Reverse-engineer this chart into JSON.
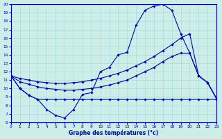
{
  "xlabel": "Graphe des températures (°c)",
  "xlim": [
    0,
    23
  ],
  "ylim": [
    6,
    20
  ],
  "xticks": [
    0,
    1,
    2,
    3,
    4,
    5,
    6,
    7,
    8,
    9,
    10,
    11,
    12,
    13,
    14,
    15,
    16,
    17,
    18,
    19,
    20,
    21,
    22,
    23
  ],
  "yticks": [
    6,
    7,
    8,
    9,
    10,
    11,
    12,
    13,
    14,
    15,
    16,
    17,
    18,
    19,
    20
  ],
  "bg_color": "#cceee8",
  "line_color": "#0000bb",
  "grid_color": "#aadddd",
  "curve_bell": [
    [
      0,
      11.5
    ],
    [
      1,
      10.0
    ],
    [
      2,
      9.2
    ],
    [
      3,
      8.7
    ],
    [
      4,
      7.5
    ],
    [
      5,
      6.8
    ],
    [
      6,
      6.5
    ],
    [
      7,
      7.5
    ],
    [
      8,
      9.3
    ],
    [
      9,
      9.5
    ],
    [
      10,
      12.0
    ],
    [
      11,
      12.5
    ],
    [
      12,
      14.0
    ],
    [
      13,
      14.3
    ],
    [
      14,
      17.5
    ],
    [
      15,
      19.3
    ],
    [
      16,
      19.8
    ],
    [
      17,
      20.0
    ],
    [
      18,
      19.3
    ],
    [
      19,
      16.5
    ],
    [
      20,
      14.2
    ],
    [
      21,
      11.5
    ],
    [
      22,
      10.7
    ],
    [
      23,
      8.8
    ]
  ],
  "curve_min": [
    [
      0,
      11.5
    ],
    [
      1,
      10.0
    ],
    [
      2,
      9.2
    ],
    [
      3,
      8.7
    ],
    [
      4,
      8.7
    ],
    [
      5,
      8.7
    ],
    [
      6,
      8.7
    ],
    [
      7,
      8.7
    ],
    [
      8,
      8.7
    ],
    [
      9,
      8.7
    ],
    [
      10,
      8.7
    ],
    [
      11,
      8.7
    ],
    [
      12,
      8.7
    ],
    [
      13,
      8.7
    ],
    [
      14,
      8.7
    ],
    [
      15,
      8.7
    ],
    [
      16,
      8.7
    ],
    [
      17,
      8.7
    ],
    [
      18,
      8.7
    ],
    [
      19,
      8.7
    ],
    [
      20,
      8.7
    ],
    [
      21,
      8.7
    ],
    [
      22,
      8.7
    ],
    [
      23,
      8.7
    ]
  ],
  "curve_upper_diag": [
    [
      0,
      11.5
    ],
    [
      1,
      11.2
    ],
    [
      2,
      11.0
    ],
    [
      3,
      10.8
    ],
    [
      4,
      10.7
    ],
    [
      5,
      10.6
    ],
    [
      6,
      10.6
    ],
    [
      7,
      10.7
    ],
    [
      8,
      10.8
    ],
    [
      9,
      11.0
    ],
    [
      10,
      11.2
    ],
    [
      11,
      11.5
    ],
    [
      12,
      11.8
    ],
    [
      13,
      12.2
    ],
    [
      14,
      12.7
    ],
    [
      15,
      13.2
    ],
    [
      16,
      13.8
    ],
    [
      17,
      14.5
    ],
    [
      18,
      15.2
    ],
    [
      19,
      16.0
    ],
    [
      20,
      16.5
    ],
    [
      21,
      11.5
    ],
    [
      22,
      10.7
    ],
    [
      23,
      8.8
    ]
  ],
  "curve_lower_diag": [
    [
      0,
      11.5
    ],
    [
      1,
      10.8
    ],
    [
      2,
      10.5
    ],
    [
      3,
      10.2
    ],
    [
      4,
      10.0
    ],
    [
      5,
      9.9
    ],
    [
      6,
      9.8
    ],
    [
      7,
      9.8
    ],
    [
      8,
      9.9
    ],
    [
      9,
      10.0
    ],
    [
      10,
      10.2
    ],
    [
      11,
      10.4
    ],
    [
      12,
      10.7
    ],
    [
      13,
      11.0
    ],
    [
      14,
      11.5
    ],
    [
      15,
      12.0
    ],
    [
      16,
      12.5
    ],
    [
      17,
      13.2
    ],
    [
      18,
      13.8
    ],
    [
      19,
      14.2
    ],
    [
      20,
      14.2
    ],
    [
      21,
      11.5
    ],
    [
      22,
      10.7
    ],
    [
      23,
      8.8
    ]
  ]
}
